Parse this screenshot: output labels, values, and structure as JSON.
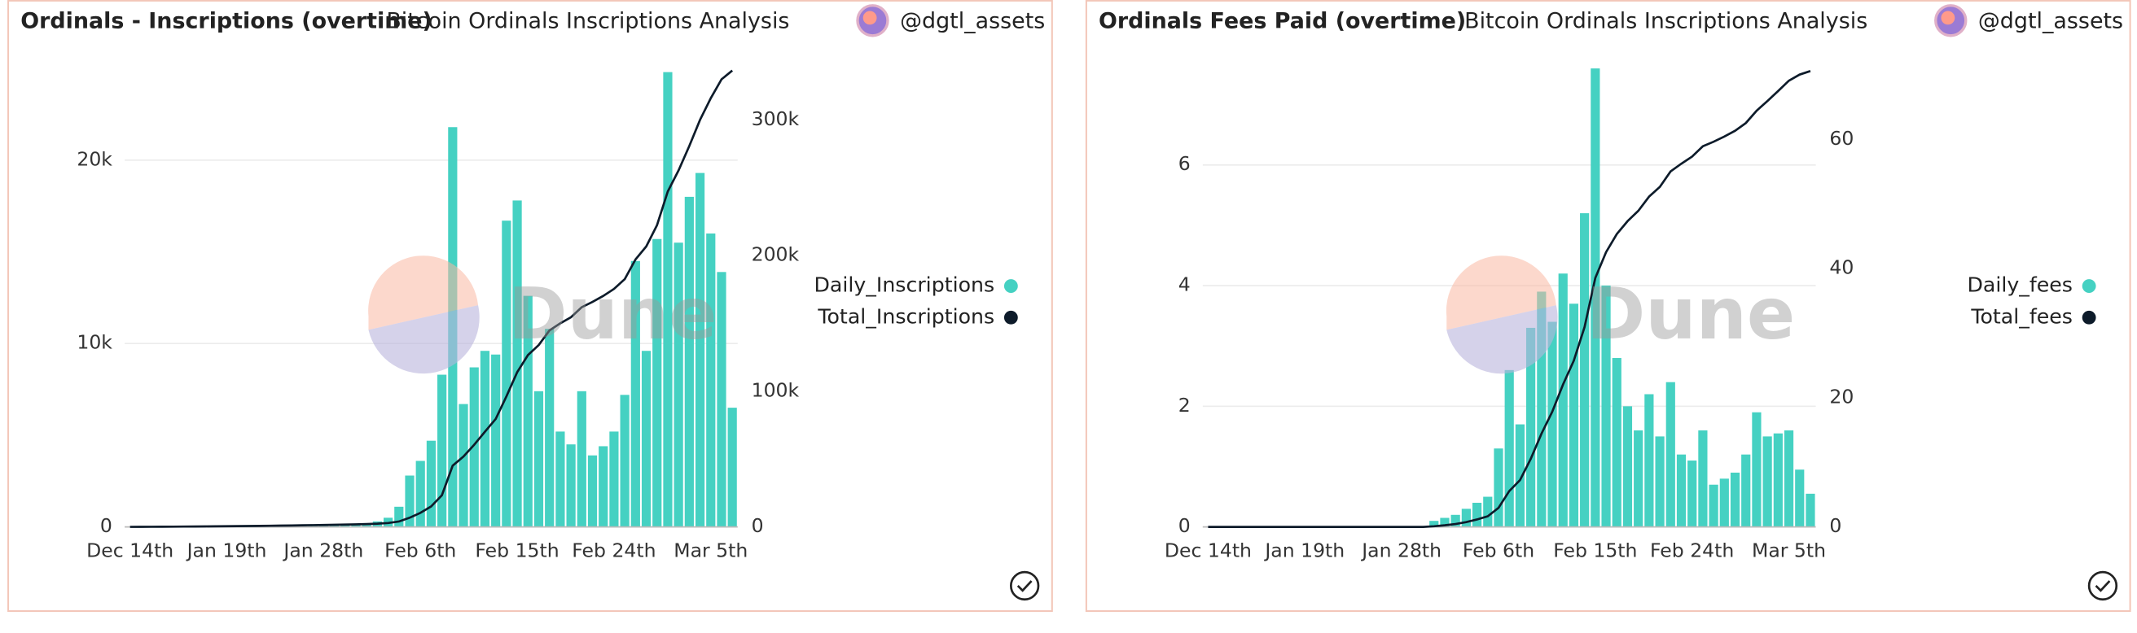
{
  "chart_data": [
    {
      "type": "bar_line",
      "title": "Ordinals - Inscriptions (overtime)",
      "subtitle": "Bitcoin Ordinals Inscriptions Analysis",
      "author": "@dgtl_assets",
      "watermark": "Dune",
      "categories": [
        "Dec 14th",
        null,
        null,
        null,
        null,
        null,
        null,
        null,
        null,
        "Jan 19th",
        null,
        null,
        null,
        null,
        null,
        null,
        null,
        null,
        "Jan 28th",
        null,
        null,
        null,
        null,
        null,
        null,
        null,
        null,
        "Feb 6th",
        null,
        null,
        null,
        null,
        null,
        null,
        null,
        null,
        "Feb 15th",
        null,
        null,
        null,
        null,
        null,
        null,
        null,
        null,
        "Feb 24th",
        null,
        null,
        null,
        null,
        null,
        null,
        null,
        null,
        "Mar 5th",
        null,
        null
      ],
      "series": [
        {
          "name": "Daily_Inscriptions",
          "color": "#45d1c2",
          "values": [
            20,
            30,
            40,
            40,
            50,
            60,
            60,
            70,
            80,
            60,
            70,
            80,
            90,
            100,
            110,
            100,
            120,
            130,
            120,
            140,
            150,
            160,
            200,
            300,
            500,
            1100,
            2800,
            3600,
            4700,
            8300,
            21800,
            6700,
            8700,
            9600,
            9400,
            16700,
            17800,
            12600,
            7400,
            10800,
            5200,
            4500,
            7400,
            3900,
            4400,
            5200,
            7200,
            14500,
            9600,
            15700,
            24800,
            15500,
            18000,
            19300,
            16000,
            13900,
            6500
          ]
        },
        {
          "name": "Total_Inscriptions",
          "color": "#0d1b2a",
          "axis": "y2",
          "values": [
            20,
            50,
            90,
            130,
            180,
            240,
            300,
            370,
            450,
            510,
            580,
            660,
            750,
            850,
            960,
            1060,
            1180,
            1310,
            1430,
            1570,
            1720,
            1880,
            2080,
            2380,
            2880,
            3980,
            6780,
            10380,
            15080,
            23380,
            45180,
            51880,
            60580,
            70180,
            79580,
            96280,
            114080,
            126680,
            134080,
            144880,
            150080,
            154580,
            161980,
            165880,
            170280,
            175480,
            182680,
            197180,
            206780,
            222480,
            247280,
            262780,
            280780,
            300080,
            316080,
            329980,
            336480
          ]
        }
      ],
      "ylim": [
        0,
        25000
      ],
      "yticks": [
        0,
        {
          "value": 10000,
          "label": "10k"
        },
        {
          "value": 20000,
          "label": "20k"
        }
      ],
      "y2lim": [
        0,
        338000
      ],
      "y2ticks": [
        0,
        {
          "value": 100000,
          "label": "100k"
        },
        {
          "value": 200000,
          "label": "200k"
        },
        {
          "value": 300000,
          "label": "300k"
        }
      ],
      "grid": true
    },
    {
      "type": "bar_line",
      "title": "Ordinals Fees Paid (overtime)",
      "subtitle": "Bitcoin Ordinals Inscriptions Analysis",
      "author": "@dgtl_assets",
      "watermark": "Dune",
      "categories": [
        "Dec 14th",
        null,
        null,
        null,
        null,
        null,
        null,
        null,
        null,
        "Jan 19th",
        null,
        null,
        null,
        null,
        null,
        null,
        null,
        null,
        "Jan 28th",
        null,
        null,
        null,
        null,
        null,
        null,
        null,
        null,
        "Feb 6th",
        null,
        null,
        null,
        null,
        null,
        null,
        null,
        null,
        "Feb 15th",
        null,
        null,
        null,
        null,
        null,
        null,
        null,
        null,
        "Feb 24th",
        null,
        null,
        null,
        null,
        null,
        null,
        null,
        null,
        "Mar 5th",
        null,
        null
      ],
      "series": [
        {
          "name": "Daily_fees",
          "color": "#45d1c2",
          "values": [
            0,
            0,
            0,
            0,
            0,
            0,
            0,
            0,
            0,
            0,
            0,
            0,
            0,
            0,
            0,
            0,
            0,
            0,
            0,
            0,
            0,
            0.1,
            0.15,
            0.2,
            0.3,
            0.4,
            0.5,
            1.3,
            2.6,
            1.7,
            3.3,
            3.9,
            3.4,
            4.2,
            3.7,
            5.2,
            7.6,
            4.0,
            2.8,
            2.0,
            1.6,
            2.2,
            1.5,
            2.4,
            1.2,
            1.1,
            1.6,
            0.7,
            0.8,
            0.9,
            1.2,
            1.9,
            1.5,
            1.55,
            1.6,
            0.95,
            0.55
          ]
        },
        {
          "name": "Total_fees",
          "color": "#0d1b2a",
          "axis": "y2",
          "values": [
            0,
            0,
            0,
            0,
            0,
            0,
            0,
            0,
            0,
            0,
            0,
            0,
            0,
            0,
            0,
            0,
            0,
            0,
            0,
            0,
            0,
            0.1,
            0.25,
            0.45,
            0.75,
            1.15,
            1.65,
            2.95,
            5.55,
            7.25,
            10.55,
            14.45,
            17.85,
            22.05,
            25.75,
            30.95,
            38.55,
            42.55,
            45.35,
            47.35,
            48.95,
            51.15,
            52.65,
            55.05,
            56.25,
            57.35,
            58.95,
            59.65,
            60.45,
            61.35,
            62.55,
            64.45,
            65.95,
            67.5,
            69.1,
            70.05,
            70.6
          ]
        }
      ],
      "ylim": [
        0,
        7.6
      ],
      "yticks": [
        0,
        2,
        4,
        6
      ],
      "y2lim": [
        0,
        71
      ],
      "y2ticks": [
        0,
        20,
        40,
        60
      ],
      "grid": true
    }
  ]
}
